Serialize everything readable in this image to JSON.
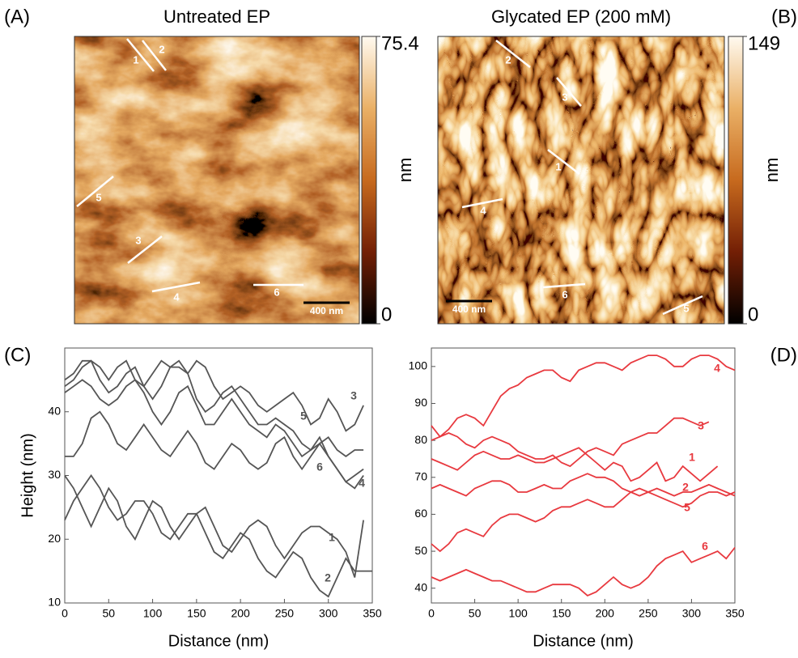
{
  "panel_labels": [
    "(A)",
    "(B)",
    "(C)",
    "(D)"
  ],
  "images": [
    {
      "title": "Untreated EP",
      "profile_labels": [
        "1",
        "2",
        "5",
        "3",
        "4",
        "6"
      ],
      "scale_bar": "400 nm",
      "colorbar": {
        "label": "nm",
        "lim": [
          0,
          75.4
        ],
        "ticks": [
          0,
          75.4
        ]
      }
    },
    {
      "title": "Glycated EP (200 mM)",
      "profile_labels": [
        "2",
        "3",
        "1",
        "4",
        "6",
        "5"
      ],
      "scale_bar": "400 nm",
      "colorbar": {
        "label": "nm",
        "lim": [
          0,
          149
        ],
        "ticks": [
          0,
          149
        ]
      }
    }
  ],
  "chart_data": [
    {
      "type": "line",
      "x_label": "Distance (nm)",
      "y_label": "Height (nm)",
      "xlim": [
        0,
        350
      ],
      "ylim": [
        10,
        50
      ],
      "xticks": [
        0,
        50,
        100,
        150,
        200,
        250,
        300,
        350
      ],
      "yticks": [
        10,
        20,
        30,
        40
      ],
      "x": [
        0,
        10,
        20,
        30,
        40,
        50,
        60,
        70,
        80,
        90,
        100,
        110,
        120,
        130,
        140,
        150,
        160,
        170,
        180,
        190,
        200,
        210,
        220,
        230,
        240,
        250,
        260,
        270,
        280,
        290,
        300,
        310,
        320,
        330,
        340,
        350
      ],
      "series": [
        {
          "name": "1",
          "color": "#555555",
          "values": [
            30,
            28,
            25,
            22,
            25,
            28,
            26,
            22,
            20,
            23,
            26,
            25,
            22,
            20,
            22,
            24,
            25,
            22,
            19,
            18,
            20,
            22,
            23,
            22,
            19,
            17,
            19,
            21,
            22,
            22,
            21,
            20,
            18,
            14,
            23,
            null
          ]
        },
        {
          "name": "2",
          "color": "#555555",
          "values": [
            23,
            26,
            28,
            30,
            28,
            25,
            23,
            24,
            26,
            26,
            24,
            21,
            20,
            22,
            24,
            24,
            21,
            18,
            17,
            19,
            21,
            20,
            17,
            15,
            14,
            16,
            18,
            17,
            14,
            12,
            11,
            14,
            17,
            15,
            15,
            15
          ]
        },
        {
          "name": "3",
          "color": "#555555",
          "values": [
            45,
            46,
            48,
            48,
            47,
            45,
            47,
            48,
            45,
            44,
            46,
            48,
            47,
            47,
            46,
            48,
            47,
            44,
            42,
            43,
            44,
            43,
            41,
            40,
            41,
            42,
            43,
            41,
            38,
            39,
            42,
            40,
            37,
            38,
            41,
            null
          ]
        },
        {
          "name": "4",
          "color": "#555555",
          "values": [
            43,
            44,
            45,
            44,
            42,
            41,
            42,
            44,
            45,
            43,
            40,
            38,
            40,
            43,
            44,
            41,
            38,
            38,
            40,
            42,
            40,
            38,
            37,
            36,
            38,
            37,
            35,
            33,
            34,
            36,
            33,
            31,
            29,
            30,
            31,
            null
          ]
        },
        {
          "name": "5",
          "color": "#555555",
          "values": [
            44,
            45,
            47,
            48,
            45,
            43,
            44,
            46,
            47,
            44,
            42,
            44,
            47,
            48,
            46,
            42,
            40,
            41,
            43,
            44,
            42,
            40,
            38,
            38,
            39,
            38,
            37,
            35,
            34,
            35,
            36,
            34,
            33,
            34,
            34,
            null
          ]
        },
        {
          "name": "6",
          "color": "#555555",
          "values": [
            33,
            33,
            35,
            39,
            40,
            38,
            35,
            34,
            36,
            38,
            36,
            34,
            33,
            35,
            37,
            35,
            32,
            31,
            33,
            35,
            34,
            32,
            31,
            32,
            35,
            36,
            33,
            31,
            33,
            35,
            33,
            31,
            29,
            28,
            30,
            null
          ]
        }
      ]
    },
    {
      "type": "line",
      "x_label": "Distance (nm)",
      "xlim": [
        0,
        350
      ],
      "ylim": [
        36,
        105
      ],
      "xticks": [
        0,
        50,
        100,
        150,
        200,
        250,
        300,
        350
      ],
      "yticks": [
        40,
        50,
        60,
        70,
        80,
        90,
        100
      ],
      "x": [
        0,
        10,
        20,
        30,
        40,
        50,
        60,
        70,
        80,
        90,
        100,
        110,
        120,
        130,
        140,
        150,
        160,
        170,
        180,
        190,
        200,
        210,
        220,
        230,
        240,
        250,
        260,
        270,
        280,
        290,
        300,
        310,
        320,
        330,
        340,
        350
      ],
      "series": [
        {
          "name": "4",
          "color": "#e8393f",
          "values": [
            84,
            81,
            83,
            86,
            87,
            86,
            84,
            88,
            92,
            94,
            95,
            97,
            98,
            99,
            99,
            97,
            96,
            99,
            100,
            101,
            101,
            100,
            99,
            101,
            102,
            103,
            103,
            102,
            100,
            100,
            102,
            103,
            103,
            102,
            100,
            99
          ]
        },
        {
          "name": "3",
          "color": "#e8393f",
          "values": [
            80,
            81,
            82,
            81,
            79,
            78,
            80,
            81,
            80,
            79,
            77,
            76,
            75,
            75,
            76,
            74,
            73,
            75,
            77,
            78,
            77,
            76,
            79,
            80,
            81,
            82,
            82,
            84,
            86,
            86,
            85,
            84,
            85,
            null,
            null,
            null
          ]
        },
        {
          "name": "1",
          "color": "#e8393f",
          "values": [
            75,
            74,
            73,
            72,
            74,
            76,
            77,
            76,
            75,
            75,
            76,
            75,
            74,
            74,
            75,
            76,
            77,
            78,
            76,
            74,
            72,
            74,
            73,
            69,
            70,
            72,
            74,
            69,
            70,
            73,
            71,
            69,
            71,
            73,
            null,
            null
          ]
        },
        {
          "name": "2",
          "color": "#e8393f",
          "values": [
            67,
            68,
            67,
            66,
            65,
            67,
            68,
            69,
            69,
            68,
            66,
            66,
            67,
            68,
            67,
            67,
            69,
            70,
            71,
            70,
            70,
            69,
            67,
            66,
            65,
            66,
            67,
            66,
            65,
            66,
            66,
            67,
            68,
            67,
            66,
            65
          ]
        },
        {
          "name": "5",
          "color": "#e8393f",
          "values": [
            52,
            50,
            52,
            55,
            56,
            55,
            54,
            57,
            59,
            60,
            60,
            59,
            58,
            59,
            61,
            62,
            62,
            63,
            64,
            63,
            62,
            62,
            64,
            66,
            67,
            66,
            65,
            64,
            63,
            62,
            63,
            65,
            66,
            66,
            65,
            66
          ]
        },
        {
          "name": "6",
          "color": "#e8393f",
          "values": [
            43,
            42,
            43,
            44,
            45,
            44,
            43,
            42,
            42,
            41,
            40,
            39,
            39,
            40,
            41,
            41,
            41,
            40,
            38,
            39,
            41,
            43,
            41,
            40,
            41,
            43,
            46,
            48,
            49,
            50,
            47,
            48,
            49,
            50,
            48,
            51
          ]
        }
      ]
    }
  ]
}
